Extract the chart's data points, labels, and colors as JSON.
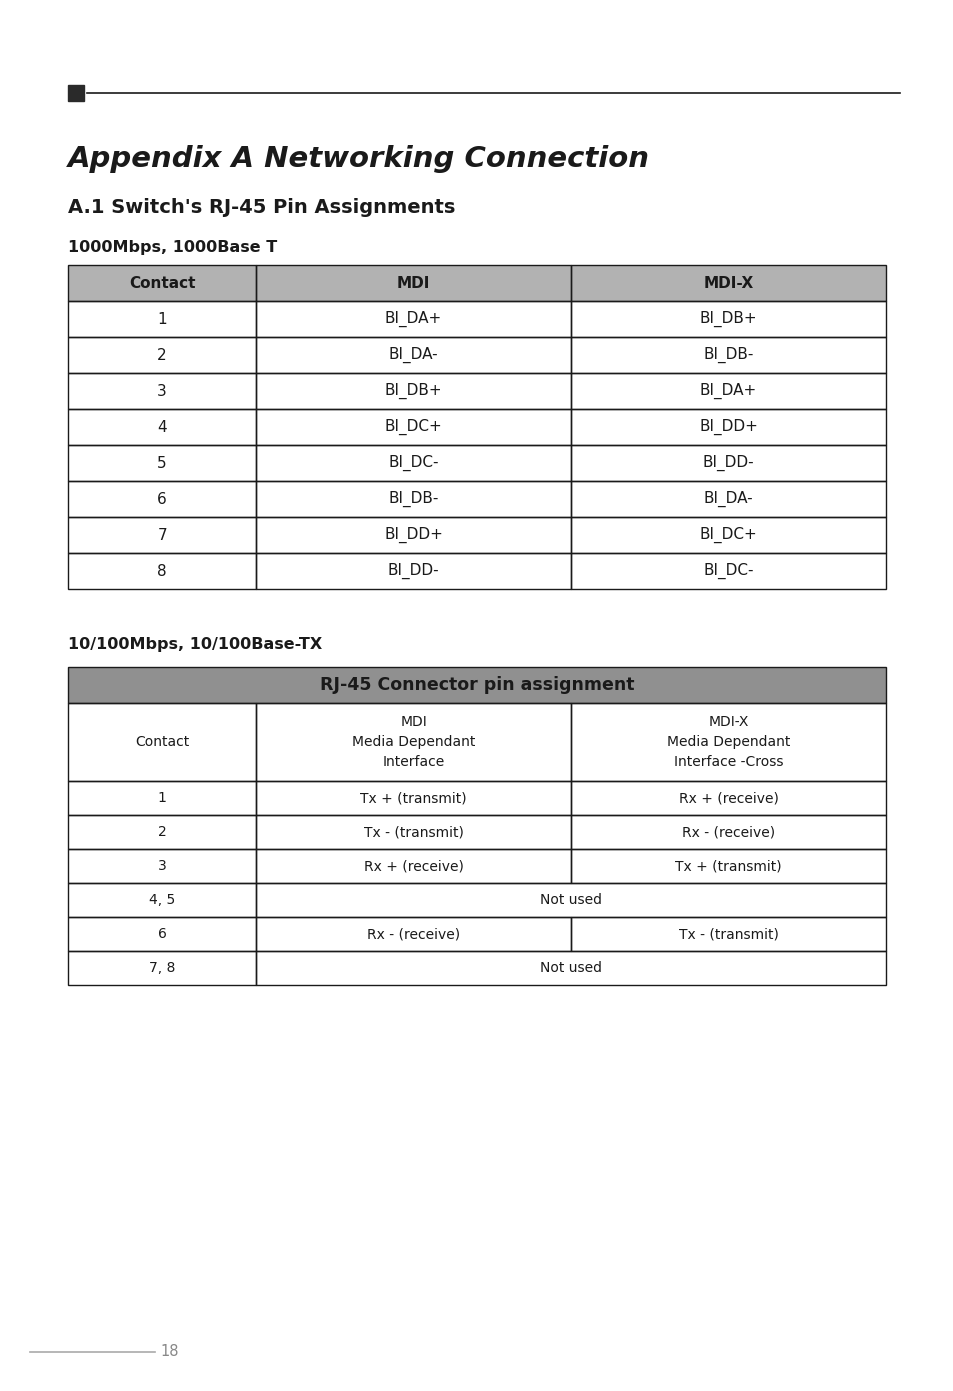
{
  "page_title": "Appendix A Networking Connection",
  "section_title": "A.1 Switch's RJ-45 Pin Assignments",
  "subsection1": "1000Mbps, 1000Base T",
  "subsection2": "10/100Mbps, 10/100Base-TX",
  "table1_header": [
    "Contact",
    "MDI",
    "MDI-X"
  ],
  "table1_rows": [
    [
      "1",
      "BI_DA+",
      "BI_DB+"
    ],
    [
      "2",
      "BI_DA-",
      "BI_DB-"
    ],
    [
      "3",
      "BI_DB+",
      "BI_DA+"
    ],
    [
      "4",
      "BI_DC+",
      "BI_DD+"
    ],
    [
      "5",
      "BI_DC-",
      "BI_DD-"
    ],
    [
      "6",
      "BI_DB-",
      "BI_DA-"
    ],
    [
      "7",
      "BI_DD+",
      "BI_DC+"
    ],
    [
      "8",
      "BI_DD-",
      "BI_DC-"
    ]
  ],
  "table2_title": "RJ-45 Connector pin assignment",
  "table2_header_col0": "Contact",
  "table2_header_col1": "MDI\nMedia Dependant\nInterface",
  "table2_header_col2": "MDI-X\nMedia Dependant\nInterface -Cross",
  "table2_rows": [
    [
      "1",
      "Tx + (transmit)",
      "Rx + (receive)"
    ],
    [
      "2",
      "Tx - (transmit)",
      "Rx - (receive)"
    ],
    [
      "3",
      "Rx + (receive)",
      "Tx + (transmit)"
    ],
    [
      "4, 5",
      "Not used",
      null
    ],
    [
      "6",
      "Rx - (receive)",
      "Tx - (transmit)"
    ],
    [
      "7, 8",
      "Not used",
      null
    ]
  ],
  "table1_header_bg": "#b2b2b2",
  "table2_title_bg": "#909090",
  "border_color": "#1a1a1a",
  "text_color": "#1a1a1a",
  "page_number": "18",
  "bg_color": "#ffffff",
  "sq_color": "#2a2a2a",
  "line_color": "#1a1a1a",
  "footer_line_color": "#aaaaaa",
  "footer_text_color": "#888888"
}
